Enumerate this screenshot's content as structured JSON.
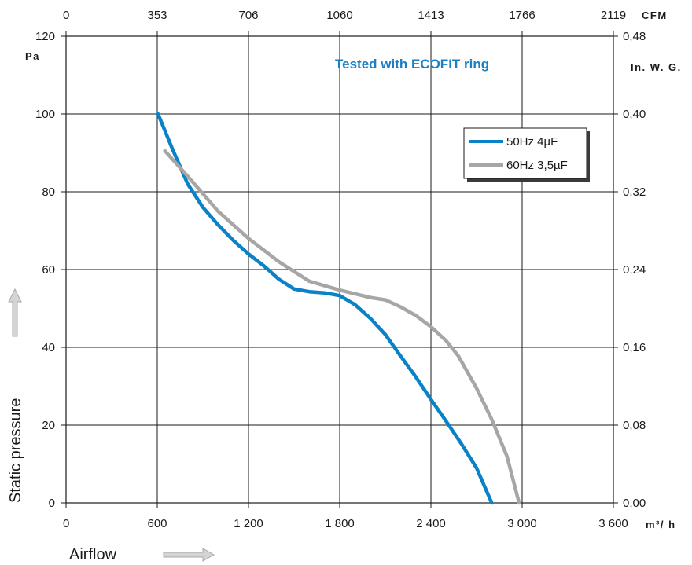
{
  "chart_data": {
    "type": "line",
    "annotation": "Tested with ECOFIT ring",
    "xlabel": "Airflow",
    "ylabel": "Static pressure",
    "x_unit": "m³/ h",
    "y_unit": "Pa",
    "x2_unit": "CFM",
    "y2_unit": "In. W. G.",
    "xlim": [
      0,
      3600
    ],
    "ylim": [
      0,
      120
    ],
    "grid": true,
    "legend_position": "top-right",
    "x_ticks": [
      "0",
      "600",
      "1 200",
      "1 800",
      "2 400",
      "3 000",
      "3 600"
    ],
    "y_ticks": [
      "0",
      "20",
      "40",
      "60",
      "80",
      "100",
      "120"
    ],
    "x2_ticks": [
      "0",
      "353",
      "706",
      "1060",
      "1413",
      "1766",
      "2119"
    ],
    "y2_ticks": [
      "0,00",
      "0,08",
      "0,16",
      "0,24",
      "0,32",
      "0,40",
      "0,48"
    ],
    "colors": {
      "annotation": "#1a7fc6",
      "axes": "#1a1a1a",
      "grid": "#1a1a1a",
      "arrow": "#c8c8c8"
    },
    "series": [
      {
        "name": "50Hz 4µF",
        "color": "#0a82c8",
        "x": [
          605,
          700,
          800,
          900,
          1000,
          1100,
          1200,
          1300,
          1400,
          1500,
          1600,
          1700,
          1800,
          1900,
          2000,
          2100,
          2200,
          2300,
          2400,
          2500,
          2600,
          2700,
          2800
        ],
        "y": [
          100,
          91,
          82,
          76,
          71.5,
          67.5,
          64,
          61,
          57.5,
          55,
          54.3,
          54,
          53.3,
          51,
          47.5,
          43.3,
          37.8,
          32.4,
          26.6,
          21,
          15.2,
          9,
          0
        ]
      },
      {
        "name": "60Hz 3,5µF",
        "color": "#a6a6a6",
        "x": [
          650,
          800,
          1000,
          1200,
          1400,
          1600,
          1800,
          2000,
          2100,
          2200,
          2300,
          2400,
          2500,
          2580,
          2700,
          2800,
          2900,
          2980
        ],
        "y": [
          90.5,
          84,
          75,
          68,
          62,
          57,
          54.7,
          52.8,
          52.2,
          50.4,
          48.2,
          45.3,
          41.7,
          37.8,
          29.5,
          21.5,
          12,
          0
        ]
      }
    ]
  }
}
